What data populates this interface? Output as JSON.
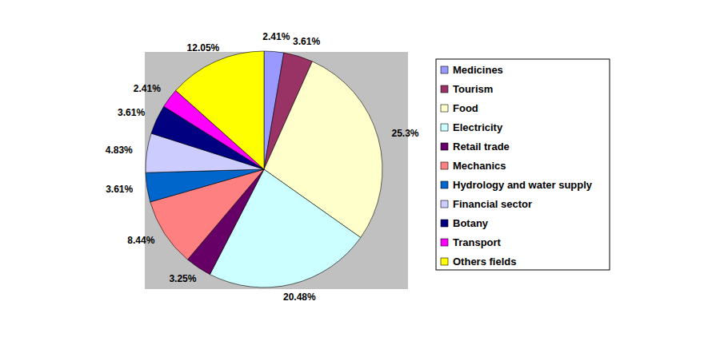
{
  "chart_data": {
    "type": "pie",
    "categories": [
      "Medicines",
      "Tourism",
      "Food",
      "Electricity",
      "Retail trade",
      "Mechanics",
      "Hydrology and water supply",
      "Financial sector",
      "Botany",
      "Transport",
      "Others fields"
    ],
    "values": [
      2.41,
      3.61,
      25.3,
      20.48,
      3.25,
      8.44,
      3.61,
      4.83,
      3.61,
      2.41,
      12.05
    ],
    "value_labels": [
      "2.41%",
      "3.61%",
      "25.3%",
      "20.48%",
      "3.25%",
      "8.44%",
      "3.61%",
      "4.83%",
      "3.61%",
      "2.41%",
      "12.05%"
    ],
    "colors": [
      "#9999ff",
      "#993366",
      "#ffffcc",
      "#ccffff",
      "#660066",
      "#ff8080",
      "#0066cc",
      "#ccccff",
      "#000080",
      "#ff00ff",
      "#ffff00"
    ],
    "data_labels": true,
    "legend": "right"
  }
}
